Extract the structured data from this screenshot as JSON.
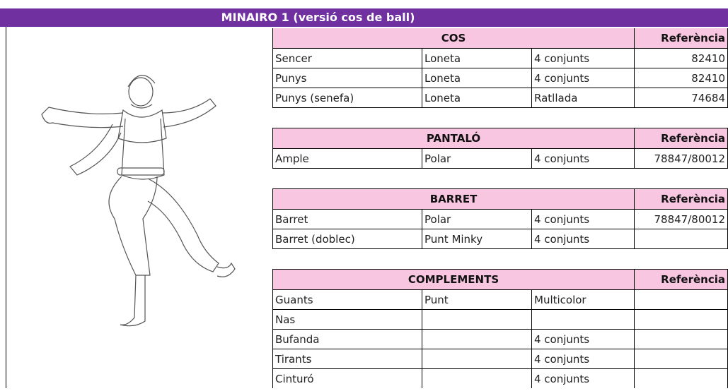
{
  "title": "MINAIRO 1 (versió cos de ball)",
  "sections": [
    {
      "header": "COS",
      "reference_header": "Referència",
      "rows": [
        [
          "Sencer",
          "Loneta",
          "4 conjunts",
          82410
        ],
        [
          "Punys",
          "Loneta",
          "4 conjunts",
          82410
        ],
        [
          "Punys (senefa)",
          "Loneta",
          "Ratllada",
          74684
        ]
      ]
    },
    {
      "header": "PANTALÓ",
      "reference_header": "Referència",
      "rows": [
        [
          "Ample",
          "Polar",
          "4 conjunts",
          "78847/80012"
        ]
      ]
    },
    {
      "header": "BARRET",
      "reference_header": "Referència",
      "rows": [
        [
          "Barret",
          "Polar",
          "4 conjunts",
          "78847/80012"
        ],
        [
          "Barret (doblec)",
          "Punt Minky",
          "4 conjunts",
          null
        ]
      ]
    },
    {
      "header": "COMPLEMENTS",
      "reference_header": "Referència",
      "rows": [
        [
          "Guants",
          "Punt",
          "Multicolor",
          null
        ],
        [
          "Nas",
          null,
          null,
          null
        ],
        [
          "Bufanda",
          null,
          "4 conjunts",
          null
        ],
        [
          "Tirants",
          null,
          "4 conjunts",
          null
        ],
        [
          "Cinturó",
          null,
          "4 conjunts",
          null
        ]
      ]
    }
  ]
}
